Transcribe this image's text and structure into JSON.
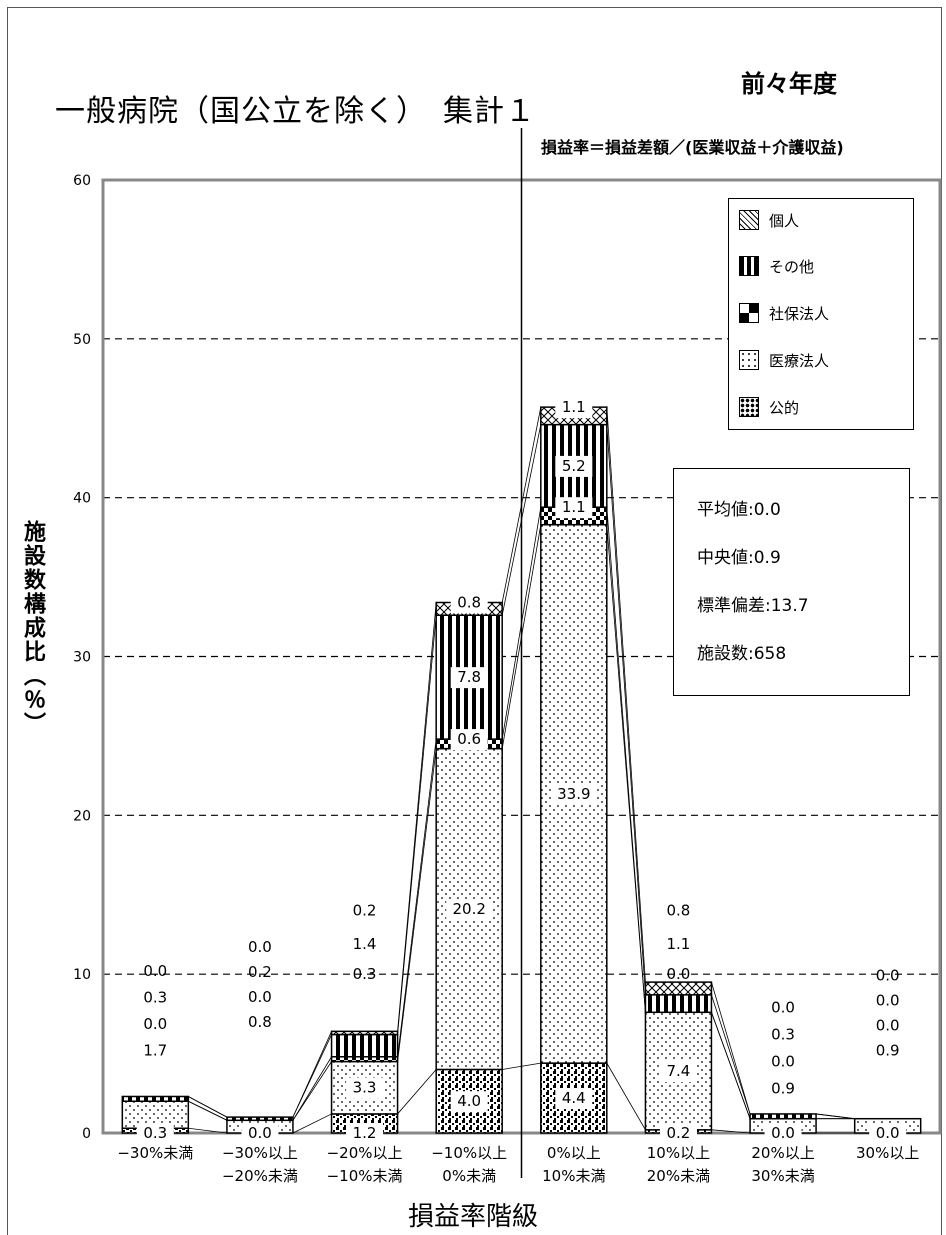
{
  "chart_data": {
    "type": "bar",
    "stacked": true,
    "title": "一般病院（国公立を除く）　集計１",
    "period_label": "前々年度",
    "formula_note": "損益率＝損益差額／(医業収益＋介護収益)",
    "xlabel": "損益率階級",
    "ylabel": "施設数構成比（％）",
    "ylim": [
      0,
      60
    ],
    "yticks": [
      "0",
      "10",
      "20",
      "30",
      "40",
      "50",
      "60"
    ],
    "grid": true,
    "categories": [
      [
        "−30%未満",
        ""
      ],
      [
        "−30%以上",
        "−20%未満"
      ],
      [
        "−20%以上",
        "−10%未満"
      ],
      [
        "−10%以上",
        "0%未満"
      ],
      [
        "0%以上",
        "10%未満"
      ],
      [
        "10%以上",
        "20%未満"
      ],
      [
        "20%以上",
        "30%未満"
      ],
      [
        "30%以上",
        ""
      ]
    ],
    "series": [
      {
        "name": "公的",
        "pattern": "coarse-dots",
        "values": [
          0.3,
          0.0,
          1.2,
          4.0,
          4.4,
          0.2,
          0.0,
          0.0
        ]
      },
      {
        "name": "医療法人",
        "pattern": "fine-dots",
        "values": [
          1.7,
          0.8,
          3.3,
          20.2,
          33.9,
          7.4,
          0.9,
          0.9
        ]
      },
      {
        "name": "社保法人",
        "pattern": "checker",
        "values": [
          0.0,
          0.0,
          0.3,
          0.6,
          1.1,
          0.0,
          0.0,
          0.0
        ]
      },
      {
        "name": "その他",
        "pattern": "vertical-stripes",
        "values": [
          0.3,
          0.2,
          1.4,
          7.8,
          5.2,
          1.1,
          0.3,
          0.0
        ]
      },
      {
        "name": "個人",
        "pattern": "cross-hatch",
        "values": [
          0.0,
          0.0,
          0.2,
          0.8,
          1.1,
          0.8,
          0.0,
          0.0
        ]
      }
    ],
    "legend_order": [
      "個人",
      "その他",
      "社保法人",
      "医療法人",
      "公的"
    ],
    "legend_position": "top-right",
    "reference_line": {
      "x_between_categories": [
        3,
        4
      ],
      "note": "vertical line at 0%"
    },
    "label_display": [
      [
        "0.3",
        "1.7",
        "0.0",
        "0.3",
        "0.0"
      ],
      [
        "0.0",
        "0.8",
        "0.0",
        "0.2",
        "0.0"
      ],
      [
        "1.2",
        "3.3",
        "0.3",
        "1.4",
        "0.2"
      ],
      [
        "4.0",
        "20.2",
        "0.6",
        "7.8",
        "0.8"
      ],
      [
        "4.4",
        "33.9",
        "1.1",
        "5.2",
        "1.1"
      ],
      [
        "0.2",
        "7.4",
        "0.0",
        "1.1",
        "0.8"
      ],
      [
        "0.0",
        "0.9",
        "0.0",
        "0.3",
        "0.0"
      ],
      [
        "0.0",
        "0.9",
        "0.0",
        "0.0",
        "0.0"
      ]
    ]
  },
  "stats": {
    "mean": "平均値:0.0",
    "median": "中央値:0.9",
    "std": "標準偏差:13.7",
    "count": "施設数:658"
  }
}
